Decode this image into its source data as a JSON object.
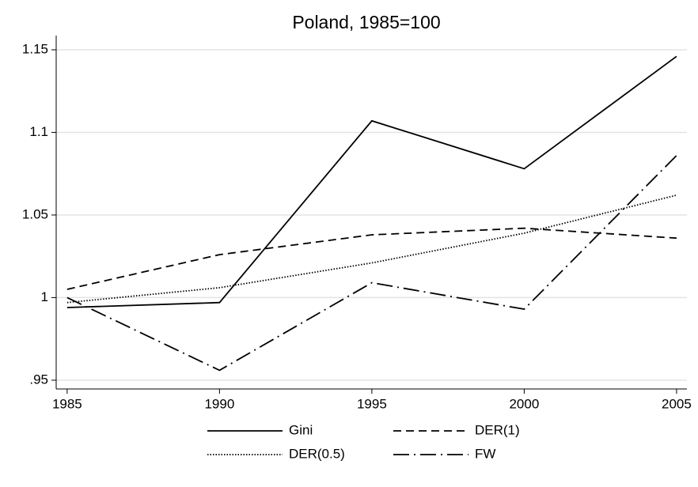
{
  "chart_data": {
    "type": "line",
    "title": "Poland, 1985=100",
    "x": [
      1985,
      1990,
      1995,
      2000,
      2005
    ],
    "xlim": [
      1984.64,
      2005.34
    ],
    "xticks": [
      1985,
      1990,
      1995,
      2000,
      2005
    ],
    "ylim": [
      0.9447,
      1.1586
    ],
    "yticks": [
      {
        "value": 0.95,
        "label": ".95"
      },
      1,
      1.05,
      1.1,
      1.15
    ],
    "grid": true,
    "legend": "bottom",
    "series": [
      {
        "name": "Gini",
        "color": "#000000",
        "dash": "solid",
        "values": [
          0.994,
          0.997,
          1.107,
          1.078,
          1.146
        ]
      },
      {
        "name": "DER(1)",
        "color": "#000000",
        "dash": "dashed",
        "values": [
          1.005,
          1.026,
          1.038,
          1.042,
          1.036
        ]
      },
      {
        "name": "DER(0.5)",
        "color": "#000000",
        "dash": "dotted",
        "values": [
          0.997,
          1.006,
          1.021,
          1.039,
          1.062
        ]
      },
      {
        "name": "FW",
        "color": "#000000",
        "dash": "dashdot",
        "values": [
          1.0,
          0.956,
          1.009,
          0.993,
          1.086
        ]
      }
    ]
  }
}
